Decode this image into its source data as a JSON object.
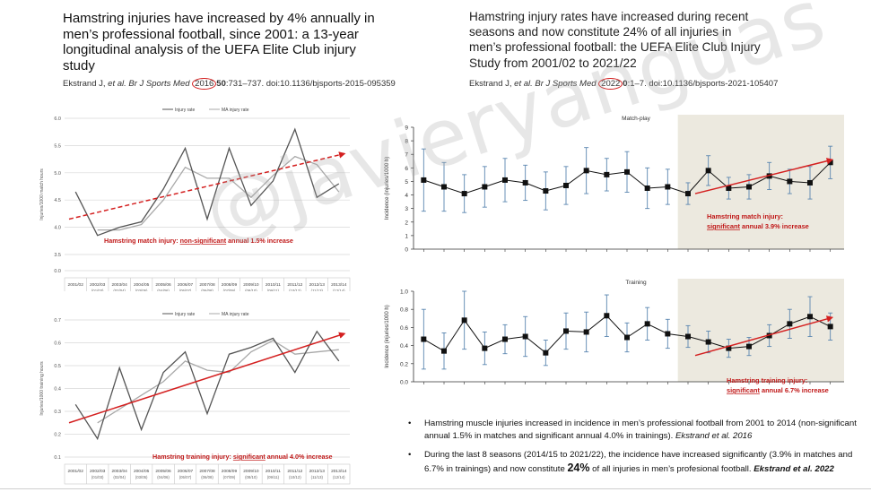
{
  "left": {
    "title": "Hamstring injuries have increased by 4% annually in men’s professional football, since 2001: a 13-year longitudinal analysis of the UEFA Elite Club injury study",
    "cite_pre": "Ekstrand J, ",
    "cite_etal": "et al. Br J Sports Med",
    "cite_year": "2016",
    "cite_vol": "50",
    "cite_post": ":731–737. doi:10.1136/bjsports-2015-095359"
  },
  "right": {
    "title": "Hamstring injury rates have increased during recent seasons and now constitute 24% of all injuries in men’s professional football: the UEFA Elite Club Injury Study from 2001/02 to 2021/22",
    "cite_pre": "Ekstrand J, ",
    "cite_etal": "et al. Br J Sports Med",
    "cite_year": "2022",
    "cite_vol": "0",
    "cite_post": ":1–7. doi:10.1136/bjsports-2021-105407"
  },
  "chart_data": [
    {
      "type": "line",
      "id": "match-2016",
      "ylabel": "Injuries/1000 match hours",
      "ylim": [
        0,
        6.0
      ],
      "yticks": [
        "0.0",
        "3.5",
        "4.0",
        "4.5",
        "5.0",
        "5.5",
        "6.0"
      ],
      "categories": [
        "2001/02",
        "2002/03 (01/03)",
        "2003/04 (02/04)",
        "2004/05 (03/05)",
        "2005/06 (04/06)",
        "2006/07 (05/07)",
        "2007/08 (06/08)",
        "2008/09 (07/09)",
        "2009/10 (08/10)",
        "2010/11 (09/11)",
        "2011/12 (10/12)",
        "2012/13 (11/13)",
        "2013/14 (12/14)"
      ],
      "series": [
        {
          "name": "Injury rate",
          "color": "#555555",
          "values": [
            4.65,
            3.85,
            4.0,
            4.1,
            4.7,
            5.45,
            4.15,
            5.45,
            4.4,
            4.85,
            5.8,
            4.55,
            4.8
          ]
        },
        {
          "name": "MA injury rate",
          "color": "#a8a8a8",
          "values": [
            null,
            3.95,
            3.95,
            4.05,
            4.5,
            5.1,
            4.9,
            4.9,
            4.55,
            4.95,
            5.3,
            5.15,
            4.65
          ]
        }
      ],
      "trend": [
        4.15,
        5.35
      ],
      "annotation": {
        "prefix": "Hamstring match injury: ",
        "emph": "non-significant",
        "suffix": " annual 1.5% increase"
      }
    },
    {
      "type": "line",
      "id": "training-2016",
      "ylabel": "Injuries/1000 training hours",
      "ylim": [
        0.1,
        0.7
      ],
      "yticks": [
        "0.1",
        "0.2",
        "0.3",
        "0.4",
        "0.5",
        "0.6",
        "0.7"
      ],
      "categories": [
        "2001/02",
        "2002/03 (01/03)",
        "2003/04 (02/04)",
        "2004/05 (03/05)",
        "2005/06 (04/06)",
        "2006/07 (05/07)",
        "2007/08 (06/08)",
        "2008/09 (07/09)",
        "2009/10 (08/10)",
        "2010/11 (09/11)",
        "2011/12 (10/12)",
        "2012/13 (11/13)",
        "2013/14 (12/14)"
      ],
      "series": [
        {
          "name": "Injury rate",
          "color": "#555555",
          "values": [
            0.33,
            0.18,
            0.49,
            0.22,
            0.47,
            0.56,
            0.29,
            0.55,
            0.58,
            0.62,
            0.47,
            0.65,
            0.52
          ]
        },
        {
          "name": "MA injury rate",
          "color": "#a8a8a8",
          "values": [
            null,
            0.25,
            0.31,
            0.37,
            0.43,
            0.52,
            0.48,
            0.47,
            0.56,
            0.61,
            0.55,
            0.56,
            0.57
          ]
        }
      ],
      "trend": [
        0.25,
        0.64
      ],
      "annotation": {
        "prefix": "Hamstring training injury: ",
        "emph": "significant",
        "suffix": " annual 4.0% increase"
      }
    },
    {
      "type": "line",
      "id": "match-2022",
      "title": "Match-play",
      "ylabel": "Incidence (injuries/1000 h)",
      "ylim": [
        0,
        9
      ],
      "yticks": [
        "0",
        "1",
        "2",
        "3",
        "4",
        "5",
        "6",
        "7",
        "8",
        "9"
      ],
      "n": 21,
      "values": [
        5.1,
        4.6,
        4.1,
        4.6,
        5.1,
        4.9,
        4.3,
        4.7,
        5.8,
        5.5,
        5.7,
        4.5,
        4.6,
        4.1,
        5.8,
        4.5,
        4.6,
        5.4,
        5.0,
        4.9,
        6.4
      ],
      "err": [
        2.3,
        1.8,
        1.4,
        1.5,
        1.6,
        1.3,
        1.4,
        1.4,
        1.7,
        1.2,
        1.5,
        1.5,
        1.3,
        0.8,
        1.1,
        0.8,
        0.9,
        1.0,
        0.9,
        1.2,
        1.2
      ],
      "shade_from": 13,
      "trend": [
        4.1,
        6.6
      ],
      "annotation": {
        "line1": "Hamstring match injury:",
        "emph": "significant",
        "suffix": " annual 3.9% increase"
      }
    },
    {
      "type": "line",
      "id": "training-2022",
      "title": "Training",
      "ylabel": "Incidence (injuries/1000 h)",
      "ylim": [
        0,
        1.0
      ],
      "yticks": [
        "0.0",
        "0.2",
        "0.4",
        "0.6",
        "0.8",
        "1.0"
      ],
      "n": 21,
      "values": [
        0.47,
        0.34,
        0.68,
        0.37,
        0.47,
        0.5,
        0.32,
        0.56,
        0.55,
        0.73,
        0.49,
        0.64,
        0.53,
        0.5,
        0.44,
        0.37,
        0.39,
        0.51,
        0.64,
        0.72,
        0.61
      ],
      "err": [
        0.33,
        0.2,
        0.32,
        0.18,
        0.16,
        0.22,
        0.14,
        0.2,
        0.22,
        0.23,
        0.16,
        0.18,
        0.16,
        0.12,
        0.12,
        0.1,
        0.1,
        0.12,
        0.16,
        0.22,
        0.15
      ],
      "shade_from": 13,
      "trend": [
        0.29,
        0.71
      ],
      "annotation": {
        "line1": "Hamstring training injury:",
        "emph": "significant",
        "suffix": " annual 6.7% increase"
      }
    }
  ],
  "bullets": [
    {
      "text": "Hamstring muscle injuries increased in incidence in men’s professional football from 2001 to 2014 (non-significant annual 1.5% in matches and significant annual 4.0% in trainings). ",
      "italic": "Ekstrand et al. 2016"
    },
    {
      "pre": "During the last 8 seasons (2014/15 to 2021/22), the incidence have increased significantly (3.9% in matches and 6.7% in trainings) and now constitute ",
      "big": "24%",
      "post": " of all injuries in men’s profesional football. ",
      "italic": "Ekstrand et al. 2022"
    }
  ],
  "watermark": "@javieryanguas",
  "colors": {
    "trend": "#d42020",
    "shade": "#ece9df",
    "series_dark": "#555555",
    "series_light": "#a8a8a8",
    "marker": "#111111",
    "errbar": "#5a86b0"
  }
}
